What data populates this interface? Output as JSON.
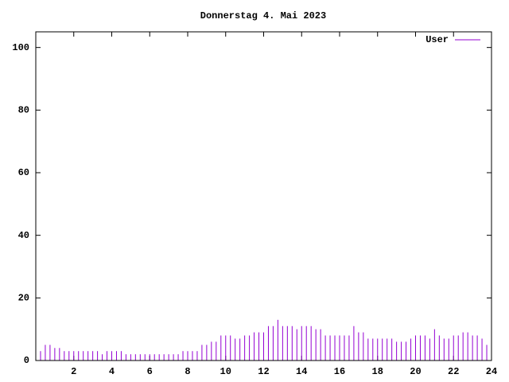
{
  "chart_data": {
    "type": "impulse",
    "title": "Donnerstag 4. Mai 2023",
    "x": [
      0,
      0.25,
      0.5,
      0.75,
      1,
      1.25,
      1.5,
      1.75,
      2,
      2.25,
      2.5,
      2.75,
      3,
      3.25,
      3.5,
      3.75,
      4,
      4.25,
      4.5,
      4.75,
      5,
      5.25,
      5.5,
      5.75,
      6,
      6.25,
      6.5,
      6.75,
      7,
      7.25,
      7.5,
      7.75,
      8,
      8.25,
      8.5,
      8.75,
      9,
      9.25,
      9.5,
      9.75,
      10,
      10.25,
      10.5,
      10.75,
      11,
      11.25,
      11.5,
      11.75,
      12,
      12.25,
      12.5,
      12.75,
      13,
      13.25,
      13.5,
      13.75,
      14,
      14.25,
      14.5,
      14.75,
      15,
      15.25,
      15.5,
      15.75,
      16,
      16.25,
      16.5,
      16.75,
      17,
      17.25,
      17.5,
      17.75,
      18,
      18.25,
      18.5,
      18.75,
      19,
      19.25,
      19.5,
      19.75,
      20,
      20.25,
      20.5,
      20.75,
      21,
      21.25,
      21.5,
      21.75,
      22,
      22.25,
      22.5,
      22.75,
      23,
      23.25,
      23.5,
      23.75
    ],
    "series": [
      {
        "name": "User",
        "color": "#9400d3",
        "values": [
          3,
          3,
          5,
          5,
          4,
          4,
          3,
          3,
          3,
          3,
          3,
          3,
          3,
          3,
          2,
          3,
          3,
          3,
          3,
          2,
          2,
          2,
          2,
          2,
          2,
          2,
          2,
          2,
          2,
          2,
          2,
          3,
          3,
          3,
          3,
          5,
          5,
          6,
          6,
          8,
          8,
          8,
          7,
          7,
          8,
          8,
          9,
          9,
          9,
          11,
          11,
          13,
          11,
          11,
          11,
          10,
          11,
          11,
          11,
          10,
          10,
          8,
          8,
          8,
          8,
          8,
          8,
          11,
          9,
          9,
          7,
          7,
          7,
          7,
          7,
          7,
          6,
          6,
          6,
          7,
          8,
          8,
          8,
          7,
          10,
          8,
          7,
          7,
          8,
          8,
          9,
          9,
          8,
          8,
          7,
          5
        ]
      }
    ],
    "xlim": [
      0,
      24
    ],
    "xticks": [
      2,
      4,
      6,
      8,
      10,
      12,
      14,
      16,
      18,
      20,
      22,
      24
    ],
    "ylim": [
      0,
      105
    ],
    "yticks": [
      0,
      20,
      40,
      60,
      80,
      100
    ],
    "legend": "top-right"
  }
}
